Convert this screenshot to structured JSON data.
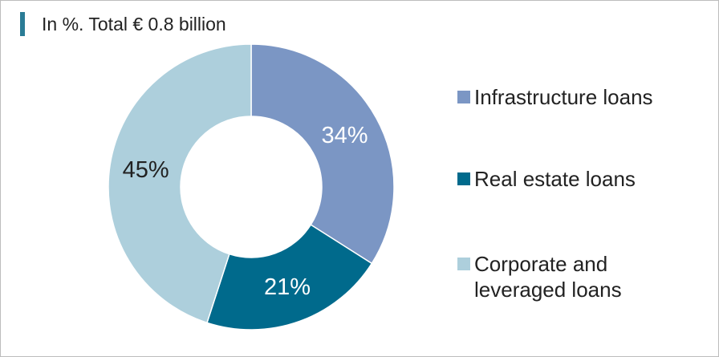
{
  "title": "In %. Total € 0.8 billion",
  "chart_data": {
    "type": "pie",
    "donut": true,
    "title": "In %. Total € 0.8 billion",
    "categories": [
      "Infrastructure loans",
      "Real estate loans",
      "Corporate and leveraged loans"
    ],
    "values": [
      34,
      21,
      45
    ],
    "labels": [
      "34%",
      "21%",
      "45%"
    ],
    "colors": [
      "#7b96c4",
      "#006a8c",
      "#adcfdc"
    ],
    "label_colors": [
      "#ffffff",
      "#ffffff",
      "#222222"
    ],
    "legend_position": "right"
  },
  "legend": [
    {
      "label": "Infrastructure loans",
      "color": "#7b96c4"
    },
    {
      "label": "Real estate loans",
      "color": "#006a8c"
    },
    {
      "label": "Corporate and\nleveraged loans",
      "color": "#adcfdc"
    }
  ]
}
